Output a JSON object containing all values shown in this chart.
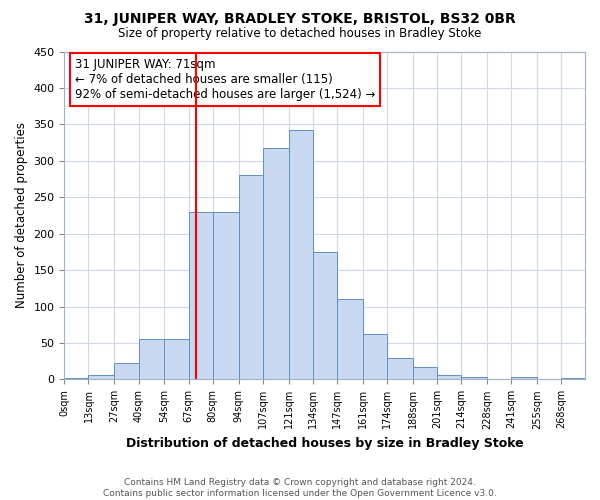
{
  "title": "31, JUNIPER WAY, BRADLEY STOKE, BRISTOL, BS32 0BR",
  "subtitle": "Size of property relative to detached houses in Bradley Stoke",
  "xlabel": "Distribution of detached houses by size in Bradley Stoke",
  "ylabel": "Number of detached properties",
  "bar_color": "#c8d8f0",
  "bar_edge_color": "#6090c0",
  "grid_color": "#d0d8e8",
  "vline_color": "red",
  "vline_x": 71,
  "annotation_text": "31 JUNIPER WAY: 71sqm\n← 7% of detached houses are smaller (115)\n92% of semi-detached houses are larger (1,524) →",
  "annotation_box_edge": "red",
  "tick_labels": [
    "0sqm",
    "13sqm",
    "27sqm",
    "40sqm",
    "54sqm",
    "67sqm",
    "80sqm",
    "94sqm",
    "107sqm",
    "121sqm",
    "134sqm",
    "147sqm",
    "161sqm",
    "174sqm",
    "188sqm",
    "201sqm",
    "214sqm",
    "228sqm",
    "241sqm",
    "255sqm",
    "268sqm"
  ],
  "bin_edges": [
    0,
    13,
    27,
    40,
    54,
    67,
    80,
    94,
    107,
    121,
    134,
    147,
    161,
    174,
    188,
    201,
    214,
    228,
    241,
    255,
    268,
    281
  ],
  "counts": [
    2,
    6,
    22,
    55,
    55,
    230,
    230,
    280,
    318,
    342,
    175,
    110,
    62,
    30,
    17,
    6,
    3,
    1,
    4,
    1,
    2
  ],
  "ylim": [
    0,
    450
  ],
  "yticks": [
    0,
    50,
    100,
    150,
    200,
    250,
    300,
    350,
    400,
    450
  ],
  "footer_text": "Contains HM Land Registry data © Crown copyright and database right 2024.\nContains public sector information licensed under the Open Government Licence v3.0.",
  "background_color": "#ffffff"
}
